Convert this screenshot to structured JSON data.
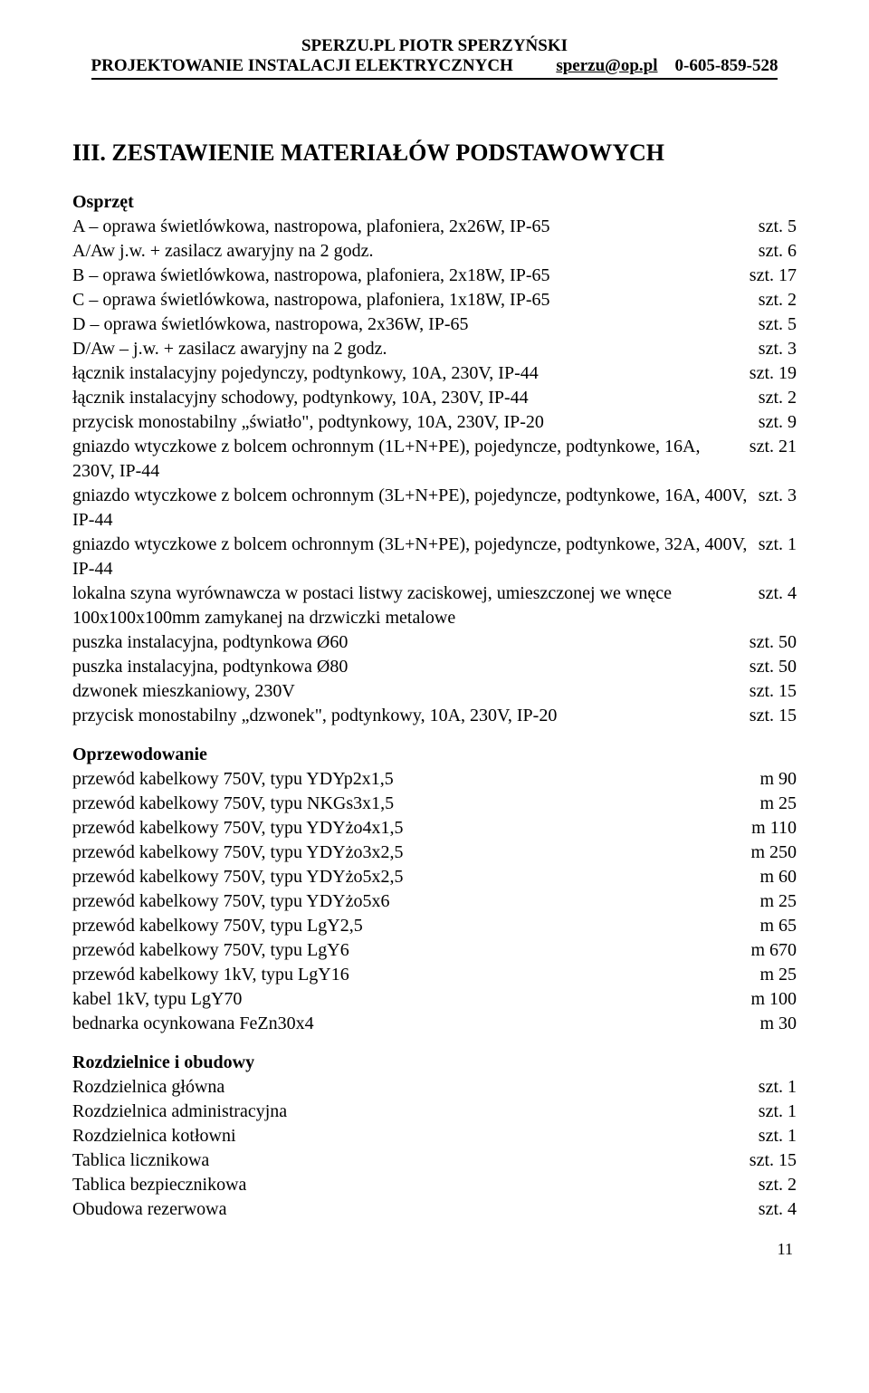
{
  "header": {
    "line1": "SPERZU.PL      PIOTR SPERZYŃSKI",
    "line2_left": "PROJEKTOWANIE INSTALACJI ELEKTRYCZNYCH",
    "email": "sperzu@op.pl",
    "phone": "0-605-859-528"
  },
  "title": "III. ZESTAWIENIE MATERIAŁÓW PODSTAWOWYCH",
  "sections": {
    "osprzet": {
      "title": "Osprzęt",
      "items": [
        {
          "label": "A – oprawa świetlówkowa, nastropowa, plafoniera, 2x26W, IP-65",
          "qty": "szt. 5"
        },
        {
          "label": "A/Aw j.w. + zasilacz awaryjny na 2 godz.",
          "qty": "szt. 6"
        },
        {
          "label": "B – oprawa świetlówkowa, nastropowa, plafoniera, 2x18W, IP-65",
          "qty": "szt. 17"
        },
        {
          "label": "C – oprawa świetlówkowa, nastropowa, plafoniera, 1x18W, IP-65",
          "qty": "szt. 2"
        },
        {
          "label": "D – oprawa świetlówkowa, nastropowa, 2x36W, IP-65",
          "qty": "szt. 5"
        },
        {
          "label": "D/Aw – j.w. + zasilacz awaryjny na 2 godz.",
          "qty": "szt. 3"
        },
        {
          "label": "łącznik instalacyjny pojedynczy, podtynkowy, 10A, 230V, IP-44",
          "qty": "szt. 19"
        },
        {
          "label": "łącznik instalacyjny schodowy, podtynkowy, 10A, 230V, IP-44",
          "qty": "szt. 2"
        },
        {
          "label": "przycisk monostabilny „światło\", podtynkowy, 10A, 230V, IP-20",
          "qty": "szt. 9"
        },
        {
          "label": "gniazdo wtyczkowe z bolcem ochronnym (1L+N+PE), pojedyncze, podtynkowe, 16A, 230V, IP-44",
          "qty": "szt. 21"
        },
        {
          "label": "gniazdo wtyczkowe z bolcem ochronnym (3L+N+PE), pojedyncze, podtynkowe, 16A, 400V, IP-44",
          "qty": "szt. 3"
        },
        {
          "label": "gniazdo wtyczkowe z bolcem ochronnym (3L+N+PE), pojedyncze, podtynkowe, 32A, 400V, IP-44",
          "qty": "szt. 1"
        },
        {
          "label": "lokalna szyna wyrównawcza w postaci listwy zaciskowej, umieszczonej we wnęce 100x100x100mm zamykanej na drzwiczki metalowe",
          "qty": "szt. 4"
        },
        {
          "label": "puszka instalacyjna, podtynkowa Ø60",
          "qty": "szt. 50"
        },
        {
          "label": "puszka instalacyjna, podtynkowa Ø80",
          "qty": "szt. 50"
        },
        {
          "label": "dzwonek mieszkaniowy, 230V",
          "qty": "szt. 15"
        },
        {
          "label": "przycisk monostabilny „dzwonek\", podtynkowy, 10A, 230V, IP-20",
          "qty": "szt. 15"
        }
      ]
    },
    "oprzewodowanie": {
      "title": "Oprzewodowanie",
      "items": [
        {
          "label": "przewód kabelkowy 750V, typu YDYp2x1,5",
          "qty": "m 90"
        },
        {
          "label": "przewód kabelkowy 750V, typu NKGs3x1,5",
          "qty": "m 25"
        },
        {
          "label": "przewód kabelkowy 750V, typu YDYżo4x1,5",
          "qty": "m 110"
        },
        {
          "label": "przewód kabelkowy 750V, typu YDYżo3x2,5",
          "qty": "m 250"
        },
        {
          "label": "przewód kabelkowy 750V, typu YDYżo5x2,5",
          "qty": "m 60"
        },
        {
          "label": "przewód kabelkowy 750V, typu YDYżo5x6",
          "qty": "m 25"
        },
        {
          "label": "przewód kabelkowy 750V, typu LgY2,5",
          "qty": "m 65"
        },
        {
          "label": "przewód kabelkowy 750V, typu LgY6",
          "qty": "m 670"
        },
        {
          "label": "przewód kabelkowy 1kV, typu LgY16",
          "qty": "m 25"
        },
        {
          "label": "kabel 1kV, typu LgY70",
          "qty": "m 100"
        },
        {
          "label": "bednarka ocynkowana FeZn30x4",
          "qty": "m 30"
        }
      ]
    },
    "rozdzielnice": {
      "title": "Rozdzielnice i obudowy",
      "items": [
        {
          "label": "Rozdzielnica główna",
          "qty": "szt. 1"
        },
        {
          "label": "Rozdzielnica administracyjna",
          "qty": "szt. 1"
        },
        {
          "label": "Rozdzielnica kotłowni",
          "qty": "szt. 1"
        },
        {
          "label": "Tablica licznikowa",
          "qty": "szt. 15"
        },
        {
          "label": "Tablica bezpiecznikowa",
          "qty": "szt. 2"
        },
        {
          "label": "Obudowa rezerwowa",
          "qty": "szt. 4"
        }
      ]
    }
  },
  "page_number": "11",
  "colors": {
    "text": "#000000",
    "background": "#ffffff",
    "rule": "#000000"
  },
  "typography": {
    "body_font": "Times New Roman",
    "body_size_pt": 15,
    "title_size_pt": 20,
    "header_size_pt": 14
  }
}
